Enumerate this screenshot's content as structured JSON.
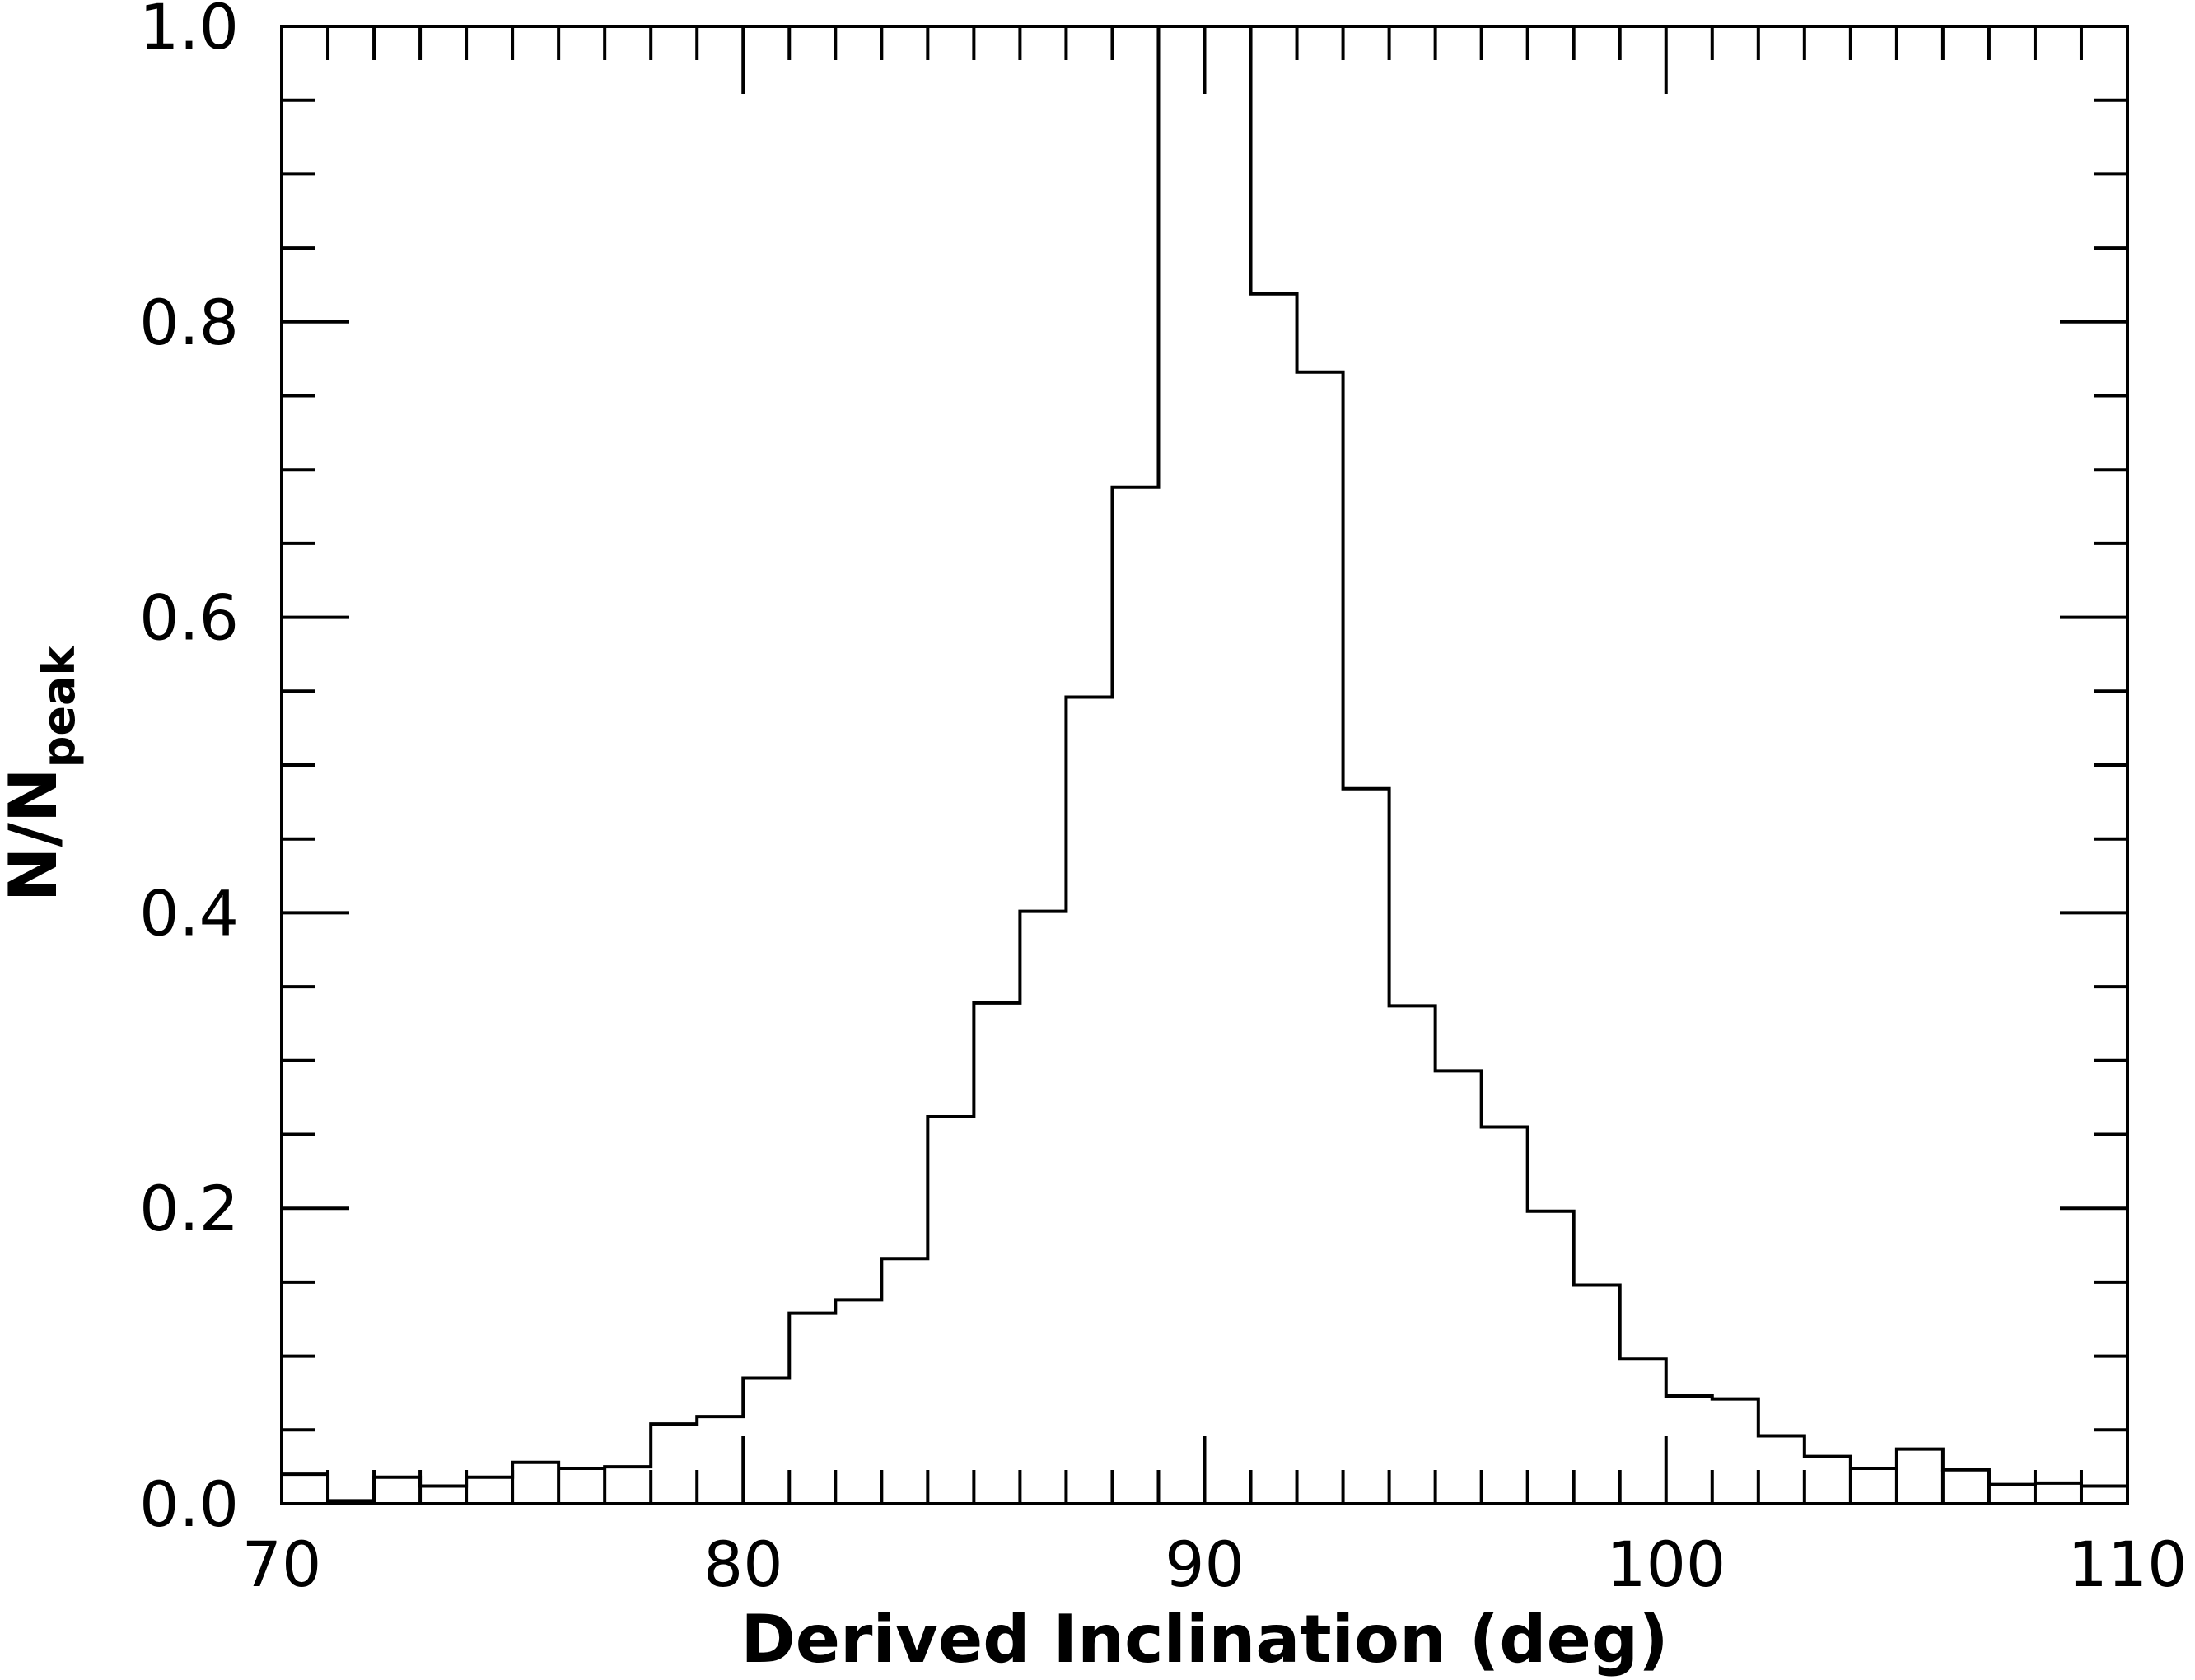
{
  "chart_data": {
    "type": "bar",
    "subtype": "step-histogram",
    "xlabel": "Derived Inclination (deg)",
    "ylabel_main": "N/N",
    "ylabel_sub": "peak",
    "xlim": [
      70,
      110
    ],
    "ylim": [
      0,
      1.0
    ],
    "x_ticks": [
      70,
      80,
      90,
      100,
      110
    ],
    "x_tick_labels": [
      "70",
      "80",
      "90",
      "100",
      "110"
    ],
    "y_ticks": [
      0.0,
      0.2,
      0.4,
      0.6,
      0.8,
      1.0
    ],
    "y_tick_labels": [
      "0.0",
      "0.2",
      "0.4",
      "0.6",
      "0.8",
      "1.0"
    ],
    "x_minor_step": 1,
    "y_minor_step": 0.05,
    "grid": false,
    "bin_width": 1,
    "bin_edges_start": 70,
    "values": [
      0.02,
      0.002,
      0.018,
      0.012,
      0.018,
      0.028,
      0.024,
      0.025,
      0.054,
      0.059,
      0.085,
      0.129,
      0.138,
      0.166,
      0.262,
      0.339,
      0.401,
      0.546,
      0.688,
      1.0,
      1.0,
      0.819,
      0.766,
      0.484,
      0.337,
      0.293,
      0.255,
      0.198,
      0.148,
      0.098,
      0.073,
      0.071,
      0.046,
      0.032,
      0.024,
      0.037,
      0.023,
      0.013,
      0.014,
      0.012
    ]
  }
}
